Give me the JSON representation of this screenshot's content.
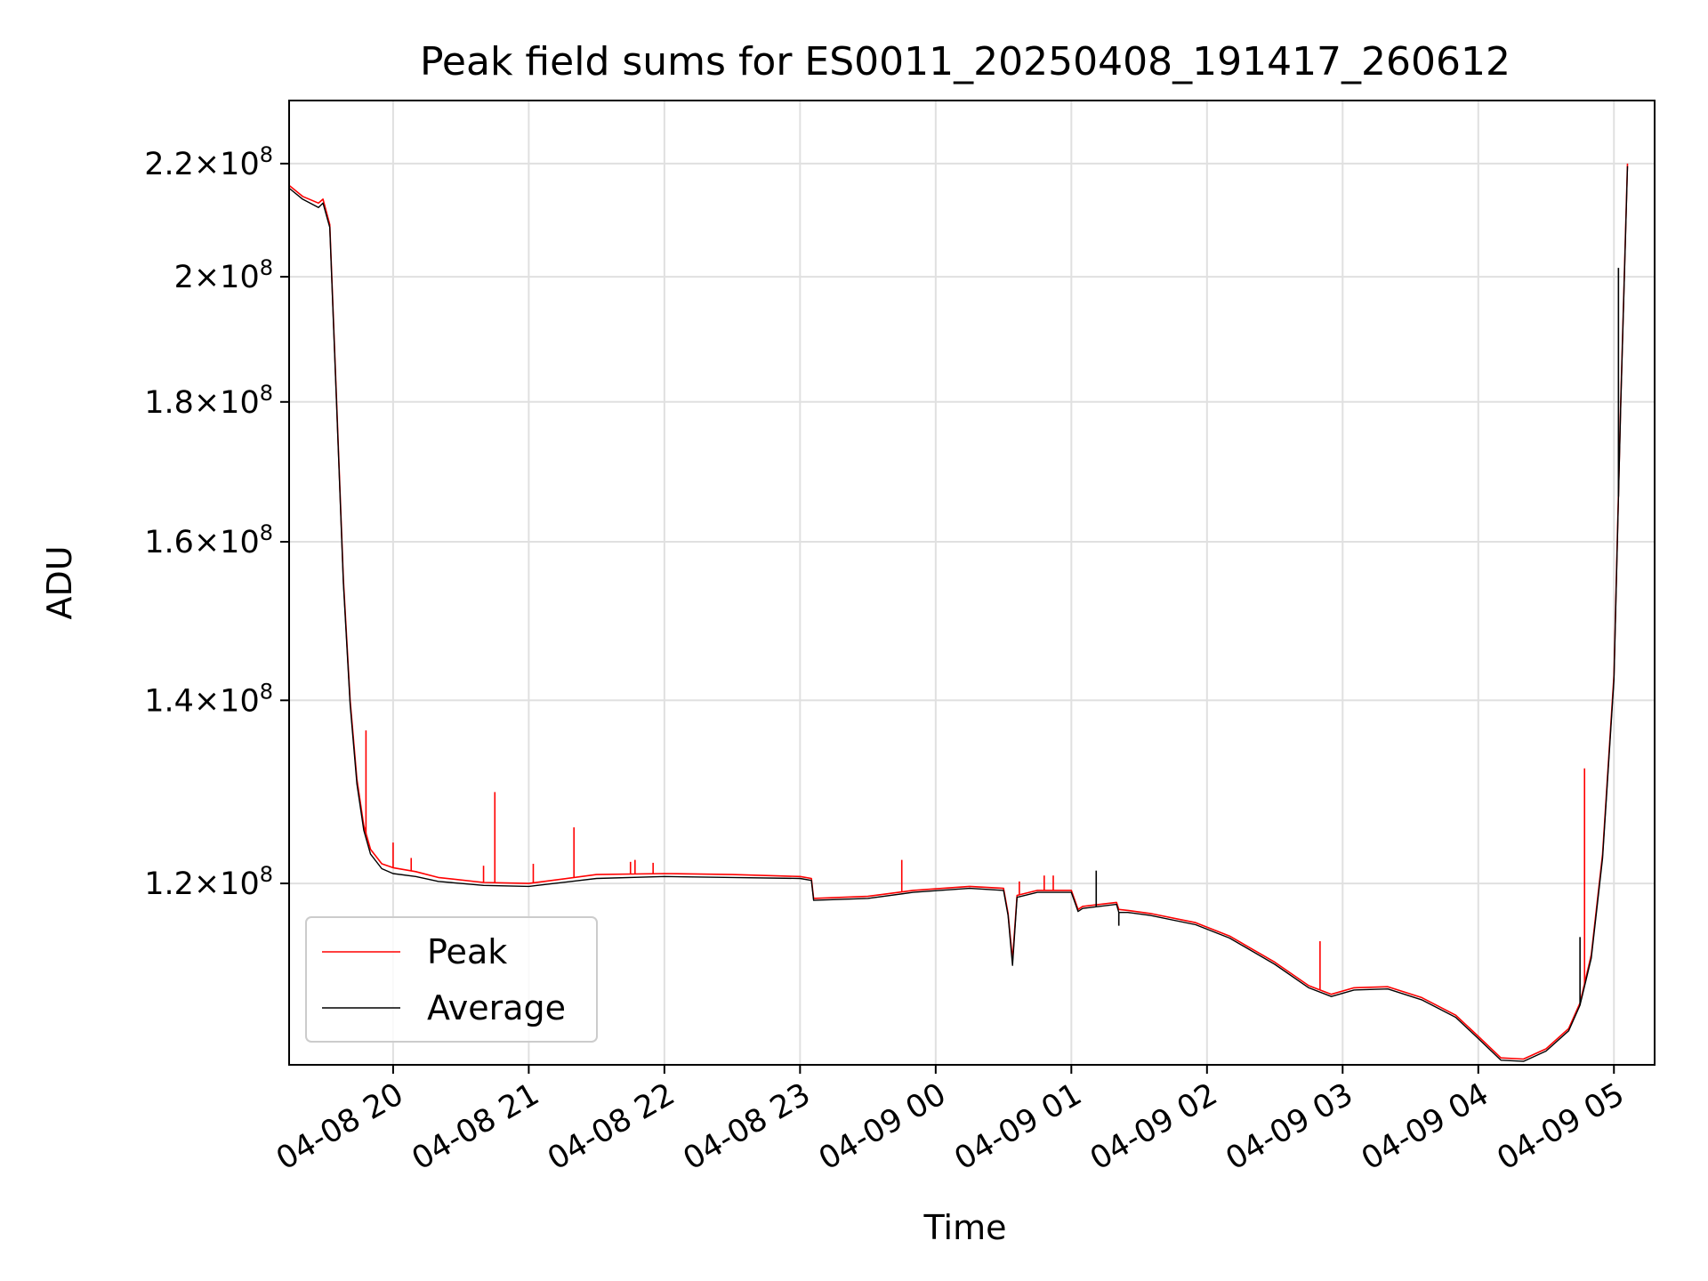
{
  "chart_data": {
    "type": "line",
    "title": "Peak field sums for ES0011_20250408_191417_260612",
    "xlabel": "Time",
    "ylabel": "ADU",
    "y_scale": "log",
    "ylim": [
      103000000,
      232000000
    ],
    "xlim": [
      "2025-04-08 19:14",
      "2025-04-09 05:18"
    ],
    "grid": true,
    "legend_position": "lower-left",
    "x_ticks": [
      "04-08 20",
      "04-08 21",
      "04-08 22",
      "04-08 23",
      "04-09 00",
      "04-09 01",
      "04-09 02",
      "04-09 03",
      "04-09 04",
      "04-09 05"
    ],
    "x_tick_times": [
      "2025-04-08 20:00",
      "2025-04-08 21:00",
      "2025-04-08 22:00",
      "2025-04-08 23:00",
      "2025-04-09 00:00",
      "2025-04-09 01:00",
      "2025-04-09 02:00",
      "2025-04-09 03:00",
      "2025-04-09 04:00",
      "2025-04-09 05:00"
    ],
    "y_ticks": [
      {
        "value": 120000000,
        "mantissa": "1.2",
        "exp": "8"
      },
      {
        "value": 140000000,
        "mantissa": "1.4",
        "exp": "8"
      },
      {
        "value": 160000000,
        "mantissa": "1.6",
        "exp": "8"
      },
      {
        "value": 180000000,
        "mantissa": "1.8",
        "exp": "8"
      },
      {
        "value": 200000000,
        "mantissa": "2",
        "exp": "8"
      },
      {
        "value": 220000000,
        "mantissa": "2.2",
        "exp": "8"
      }
    ],
    "series": [
      {
        "name": "Peak",
        "color": "#ff0000",
        "x": [
          "2025-04-08 19:14",
          "2025-04-08 19:20",
          "2025-04-08 19:27",
          "2025-04-08 19:29",
          "2025-04-08 19:32",
          "2025-04-08 19:35",
          "2025-04-08 19:38",
          "2025-04-08 19:41",
          "2025-04-08 19:44",
          "2025-04-08 19:47",
          "2025-04-08 19:50",
          "2025-04-08 19:55",
          "2025-04-08 20:00",
          "2025-04-08 20:10",
          "2025-04-08 20:20",
          "2025-04-08 20:40",
          "2025-04-08 21:00",
          "2025-04-08 21:30",
          "2025-04-08 22:00",
          "2025-04-08 22:30",
          "2025-04-08 23:00",
          "2025-04-08 23:05",
          "2025-04-08 23:06",
          "2025-04-08 23:30",
          "2025-04-08 23:50",
          "2025-04-09 00:15",
          "2025-04-09 00:30",
          "2025-04-09 00:32",
          "2025-04-09 00:34",
          "2025-04-09 00:36",
          "2025-04-09 00:45",
          "2025-04-09 01:00",
          "2025-04-09 01:03",
          "2025-04-09 01:05",
          "2025-04-09 01:20",
          "2025-04-09 01:21",
          "2025-04-09 01:25",
          "2025-04-09 01:35",
          "2025-04-09 01:55",
          "2025-04-09 02:10",
          "2025-04-09 02:30",
          "2025-04-09 02:45",
          "2025-04-09 02:55",
          "2025-04-09 03:05",
          "2025-04-09 03:20",
          "2025-04-09 03:35",
          "2025-04-09 03:50",
          "2025-04-09 04:00",
          "2025-04-09 04:10",
          "2025-04-09 04:20",
          "2025-04-09 04:30",
          "2025-04-09 04:40",
          "2025-04-09 04:45",
          "2025-04-09 04:50",
          "2025-04-09 04:55",
          "2025-04-09 05:00",
          "2025-04-09 05:03",
          "2025-04-09 05:06"
        ],
        "values": [
          216000000,
          214000000,
          212800000,
          213500000,
          209000000,
          180000000,
          155000000,
          140000000,
          131000000,
          126000000,
          123500000,
          122000000,
          121600000,
          121200000,
          120600000,
          120100000,
          120000000,
          120900000,
          121000000,
          120900000,
          120700000,
          120500000,
          118500000,
          118700000,
          119300000,
          119700000,
          119500000,
          117000000,
          112500000,
          118800000,
          119300000,
          119300000,
          117400000,
          117700000,
          118100000,
          117400000,
          117300000,
          117000000,
          116100000,
          114800000,
          112300000,
          110100000,
          109300000,
          109900000,
          110000000,
          109000000,
          107400000,
          105500000,
          103600000,
          103500000,
          104400000,
          106200000,
          108500000,
          113000000,
          123000000,
          143000000,
          180000000,
          220000000
        ],
        "spikes": [
          {
            "x": "2025-04-08 19:48",
            "value": 136500000
          },
          {
            "x": "2025-04-08 20:00",
            "value": 124200000
          },
          {
            "x": "2025-04-08 20:08",
            "value": 122600000
          },
          {
            "x": "2025-04-08 20:40",
            "value": 121800000
          },
          {
            "x": "2025-04-08 20:45",
            "value": 129600000
          },
          {
            "x": "2025-04-08 21:02",
            "value": 122000000
          },
          {
            "x": "2025-04-08 21:20",
            "value": 125800000
          },
          {
            "x": "2025-04-08 21:45",
            "value": 122200000
          },
          {
            "x": "2025-04-08 21:47",
            "value": 122400000
          },
          {
            "x": "2025-04-08 21:55",
            "value": 122100000
          },
          {
            "x": "2025-04-08 23:45",
            "value": 122400000
          },
          {
            "x": "2025-04-09 00:37",
            "value": 120200000
          },
          {
            "x": "2025-04-09 00:48",
            "value": 120800000
          },
          {
            "x": "2025-04-09 00:52",
            "value": 120800000
          },
          {
            "x": "2025-04-09 02:50",
            "value": 114300000
          },
          {
            "x": "2025-04-09 04:47",
            "value": 132200000
          }
        ]
      },
      {
        "name": "Average",
        "color": "#000000",
        "x": [
          "2025-04-08 19:14",
          "2025-04-08 19:20",
          "2025-04-08 19:27",
          "2025-04-08 19:29",
          "2025-04-08 19:32",
          "2025-04-08 19:35",
          "2025-04-08 19:38",
          "2025-04-08 19:41",
          "2025-04-08 19:44",
          "2025-04-08 19:47",
          "2025-04-08 19:50",
          "2025-04-08 19:55",
          "2025-04-08 20:00",
          "2025-04-08 20:10",
          "2025-04-08 20:20",
          "2025-04-08 20:40",
          "2025-04-08 21:00",
          "2025-04-08 21:30",
          "2025-04-08 22:00",
          "2025-04-08 22:30",
          "2025-04-08 23:00",
          "2025-04-08 23:05",
          "2025-04-08 23:06",
          "2025-04-08 23:30",
          "2025-04-08 23:50",
          "2025-04-09 00:15",
          "2025-04-09 00:30",
          "2025-04-09 00:32",
          "2025-04-09 00:34",
          "2025-04-09 00:36",
          "2025-04-09 00:45",
          "2025-04-09 01:00",
          "2025-04-09 01:03",
          "2025-04-09 01:05",
          "2025-04-09 01:20",
          "2025-04-09 01:21",
          "2025-04-09 01:25",
          "2025-04-09 01:35",
          "2025-04-09 01:55",
          "2025-04-09 02:10",
          "2025-04-09 02:30",
          "2025-04-09 02:45",
          "2025-04-09 02:55",
          "2025-04-09 03:05",
          "2025-04-09 03:20",
          "2025-04-09 03:35",
          "2025-04-09 03:50",
          "2025-04-09 04:00",
          "2025-04-09 04:10",
          "2025-04-09 04:20",
          "2025-04-09 04:30",
          "2025-04-09 04:40",
          "2025-04-09 04:45",
          "2025-04-09 04:50",
          "2025-04-09 04:55",
          "2025-04-09 05:00",
          "2025-04-09 05:03",
          "2025-04-09 05:06"
        ],
        "values": [
          215500000,
          213500000,
          212000000,
          212800000,
          208500000,
          179500000,
          154500000,
          139500000,
          130500000,
          125500000,
          123000000,
          121500000,
          121000000,
          120700000,
          120200000,
          119800000,
          119700000,
          120500000,
          120700000,
          120600000,
          120500000,
          120300000,
          118300000,
          118500000,
          119100000,
          119500000,
          119300000,
          116800000,
          112000000,
          118600000,
          119100000,
          119100000,
          117200000,
          117500000,
          117900000,
          117100000,
          117100000,
          116800000,
          115900000,
          114600000,
          112100000,
          109900000,
          109100000,
          109700000,
          109800000,
          108800000,
          107200000,
          105300000,
          103400000,
          103300000,
          104200000,
          106000000,
          108300000,
          112700000,
          122600000,
          142500000,
          179500000,
          219500000
        ],
        "spikes": [
          {
            "x": "2025-04-09 01:11",
            "value": 121300000
          },
          {
            "x": "2025-04-09 01:21",
            "value": 115800000
          },
          {
            "x": "2025-04-09 04:45",
            "value": 114700000
          },
          {
            "x": "2025-04-09 05:02",
            "value": 201500000
          }
        ]
      }
    ]
  }
}
